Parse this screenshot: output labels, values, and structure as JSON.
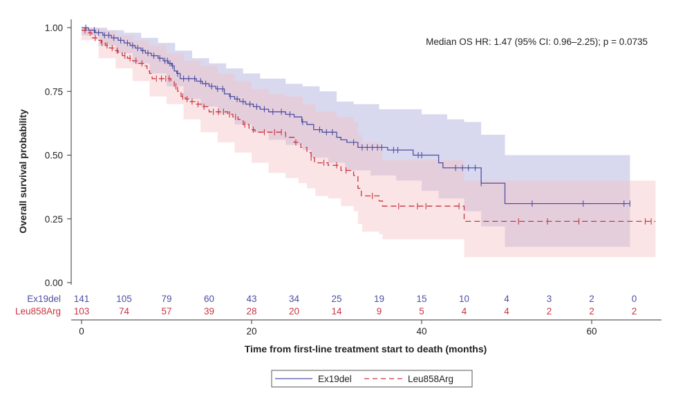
{
  "chart_data": {
    "type": "line",
    "subtype": "kaplan-meier",
    "annotation": "Median OS HR: 1.47 (95% CI: 0.96–2.25); p = 0.0735",
    "xlabel": "Time from first-line treatment start to death (months)",
    "ylabel": "Overall survival probability",
    "xlim": [
      0,
      68
    ],
    "ylim": [
      0,
      1
    ],
    "x_ticks": [
      0,
      20,
      40,
      60
    ],
    "x_tick_labels": [
      "0",
      "20",
      "40",
      "60"
    ],
    "y_ticks": [
      0,
      0.25,
      0.5,
      0.75,
      1
    ],
    "y_tick_labels": [
      "0.00",
      "0.25",
      "0.50",
      "0.75",
      "1.00"
    ],
    "risk_table": {
      "times": [
        0,
        5,
        10,
        15,
        20,
        25,
        30,
        35,
        40,
        45,
        50,
        55,
        60,
        65
      ],
      "rows": [
        {
          "label": "Ex19del",
          "counts": [
            "141",
            "105",
            "79",
            "60",
            "43",
            "34",
            "25",
            "19",
            "15",
            "10",
            "4",
            "3",
            "2",
            "0"
          ]
        },
        {
          "label": "Leu858Arg",
          "counts": [
            "103",
            "74",
            "57",
            "39",
            "28",
            "20",
            "14",
            "9",
            "5",
            "4",
            "4",
            "2",
            "2",
            "2"
          ]
        }
      ]
    },
    "legend": {
      "position": "bottom-center",
      "entries": [
        "Ex19del",
        "Leu858Arg"
      ]
    },
    "series": [
      {
        "name": "Ex19del",
        "color": "#4a4fa3",
        "band_color": "#a9a9d9",
        "line_style": "solid",
        "steps": [
          [
            0,
            1.0
          ],
          [
            0.8,
            0.99
          ],
          [
            1.6,
            0.98
          ],
          [
            2.5,
            0.97
          ],
          [
            3.5,
            0.96
          ],
          [
            4.3,
            0.95
          ],
          [
            5,
            0.94
          ],
          [
            5.7,
            0.93
          ],
          [
            6.3,
            0.92
          ],
          [
            7,
            0.91
          ],
          [
            7.5,
            0.9
          ],
          [
            8.2,
            0.89
          ],
          [
            9,
            0.88
          ],
          [
            9.6,
            0.87
          ],
          [
            10.2,
            0.86
          ],
          [
            10.6,
            0.85
          ],
          [
            10.9,
            0.83
          ],
          [
            11.2,
            0.82
          ],
          [
            11.6,
            0.8
          ],
          [
            13.5,
            0.79
          ],
          [
            14.2,
            0.78
          ],
          [
            15,
            0.77
          ],
          [
            15.8,
            0.76
          ],
          [
            16.8,
            0.74
          ],
          [
            17.4,
            0.73
          ],
          [
            18,
            0.72
          ],
          [
            18.6,
            0.71
          ],
          [
            19.3,
            0.7
          ],
          [
            20.2,
            0.69
          ],
          [
            21,
            0.68
          ],
          [
            22,
            0.67
          ],
          [
            24,
            0.66
          ],
          [
            25,
            0.65
          ],
          [
            25.9,
            0.63
          ],
          [
            26.5,
            0.62
          ],
          [
            27.3,
            0.6
          ],
          [
            28.3,
            0.59
          ],
          [
            30,
            0.57
          ],
          [
            30.5,
            0.56
          ],
          [
            31.2,
            0.55
          ],
          [
            32.5,
            0.53
          ],
          [
            36,
            0.52
          ],
          [
            39,
            0.5
          ],
          [
            42,
            0.47
          ],
          [
            42.5,
            0.45
          ],
          [
            47,
            0.39
          ],
          [
            49.8,
            0.31
          ],
          [
            64.5,
            0.31
          ]
        ],
        "lower": [
          [
            0,
            0.97
          ],
          [
            2,
            0.93
          ],
          [
            4,
            0.9
          ],
          [
            6,
            0.86
          ],
          [
            8,
            0.82
          ],
          [
            10,
            0.77
          ],
          [
            12,
            0.72
          ],
          [
            14,
            0.69
          ],
          [
            16,
            0.66
          ],
          [
            18,
            0.62
          ],
          [
            20,
            0.59
          ],
          [
            22,
            0.56
          ],
          [
            24,
            0.54
          ],
          [
            26,
            0.52
          ],
          [
            27,
            0.49
          ],
          [
            29,
            0.47
          ],
          [
            31,
            0.44
          ],
          [
            34,
            0.42
          ],
          [
            37,
            0.4
          ],
          [
            40,
            0.36
          ],
          [
            42,
            0.33
          ],
          [
            45,
            0.28
          ],
          [
            47,
            0.22
          ],
          [
            49.8,
            0.14
          ],
          [
            64.5,
            0.14
          ]
        ],
        "upper": [
          [
            0,
            1.0
          ],
          [
            2,
            1.0
          ],
          [
            3,
            0.99
          ],
          [
            5,
            0.98
          ],
          [
            7,
            0.96
          ],
          [
            9,
            0.94
          ],
          [
            11,
            0.91
          ],
          [
            13,
            0.88
          ],
          [
            15,
            0.86
          ],
          [
            17,
            0.84
          ],
          [
            19,
            0.82
          ],
          [
            21,
            0.8
          ],
          [
            24,
            0.78
          ],
          [
            26,
            0.77
          ],
          [
            28,
            0.75
          ],
          [
            30,
            0.71
          ],
          [
            32,
            0.7
          ],
          [
            35,
            0.68
          ],
          [
            37,
            0.68
          ],
          [
            40,
            0.66
          ],
          [
            43,
            0.64
          ],
          [
            45,
            0.63
          ],
          [
            47,
            0.58
          ],
          [
            49.8,
            0.5
          ],
          [
            64.5,
            0.5
          ]
        ],
        "censor_times": [
          0.5,
          1.5,
          2,
          2.7,
          3.2,
          3.8,
          4.6,
          5.4,
          6,
          6.6,
          7.2,
          7.8,
          8.5,
          9.2,
          9.8,
          10.1,
          10.4,
          10.7,
          11.3,
          12,
          12.6,
          13.3,
          14,
          14.6,
          15.3,
          16,
          16.6,
          17.5,
          18.3,
          19,
          19.8,
          20.6,
          21.5,
          22.5,
          23.5,
          24.5,
          26,
          28,
          28.8,
          29.5,
          32,
          33,
          33.6,
          34.2,
          34.8,
          35.3,
          36.7,
          37.2,
          39.6,
          40,
          44,
          44.8,
          45.5,
          46.3,
          47,
          53,
          59,
          63.8,
          64.5
        ]
      },
      {
        "name": "Leu858Arg",
        "color": "#c8323e",
        "band_color": "#f6c3c6",
        "line_style": "dashed",
        "steps": [
          [
            0,
            0.99
          ],
          [
            0.6,
            0.98
          ],
          [
            1.2,
            0.96
          ],
          [
            1.8,
            0.95
          ],
          [
            2.3,
            0.94
          ],
          [
            2.8,
            0.93
          ],
          [
            3.3,
            0.92
          ],
          [
            3.8,
            0.91
          ],
          [
            4.3,
            0.9
          ],
          [
            4.8,
            0.89
          ],
          [
            5.4,
            0.88
          ],
          [
            6,
            0.87
          ],
          [
            6.7,
            0.86
          ],
          [
            7.3,
            0.85
          ],
          [
            7.7,
            0.83
          ],
          [
            8,
            0.82
          ],
          [
            8.3,
            0.8
          ],
          [
            10.5,
            0.79
          ],
          [
            10.9,
            0.77
          ],
          [
            11.3,
            0.75
          ],
          [
            11.7,
            0.73
          ],
          [
            12.2,
            0.72
          ],
          [
            12.8,
            0.71
          ],
          [
            13.5,
            0.7
          ],
          [
            14.2,
            0.69
          ],
          [
            15,
            0.67
          ],
          [
            17.2,
            0.66
          ],
          [
            17.8,
            0.65
          ],
          [
            18.4,
            0.64
          ],
          [
            19,
            0.62
          ],
          [
            19.7,
            0.6
          ],
          [
            20.4,
            0.59
          ],
          [
            24,
            0.57
          ],
          [
            25,
            0.55
          ],
          [
            25.8,
            0.53
          ],
          [
            26.5,
            0.51
          ],
          [
            27,
            0.49
          ],
          [
            27.4,
            0.47
          ],
          [
            29,
            0.46
          ],
          [
            30.5,
            0.44
          ],
          [
            32,
            0.42
          ],
          [
            32.5,
            0.37
          ],
          [
            32.9,
            0.34
          ],
          [
            35,
            0.32
          ],
          [
            35.4,
            0.3
          ],
          [
            45,
            0.24
          ],
          [
            67.5,
            0.24
          ]
        ],
        "lower": [
          [
            0,
            0.95
          ],
          [
            2,
            0.88
          ],
          [
            4,
            0.84
          ],
          [
            6,
            0.79
          ],
          [
            8,
            0.73
          ],
          [
            10,
            0.7
          ],
          [
            12,
            0.64
          ],
          [
            14,
            0.59
          ],
          [
            16,
            0.55
          ],
          [
            18,
            0.51
          ],
          [
            20,
            0.47
          ],
          [
            22,
            0.43
          ],
          [
            24,
            0.41
          ],
          [
            25.5,
            0.39
          ],
          [
            26.5,
            0.37
          ],
          [
            27.5,
            0.34
          ],
          [
            29,
            0.33
          ],
          [
            30.5,
            0.3
          ],
          [
            32,
            0.28
          ],
          [
            32.5,
            0.23
          ],
          [
            33,
            0.2
          ],
          [
            35,
            0.19
          ],
          [
            35.4,
            0.17
          ],
          [
            45,
            0.1
          ],
          [
            67.5,
            0.1
          ]
        ],
        "upper": [
          [
            0,
            1.0
          ],
          [
            1,
            1.0
          ],
          [
            2,
            0.99
          ],
          [
            4,
            0.97
          ],
          [
            6,
            0.95
          ],
          [
            8,
            0.93
          ],
          [
            10,
            0.9
          ],
          [
            12,
            0.87
          ],
          [
            14,
            0.85
          ],
          [
            16,
            0.82
          ],
          [
            18,
            0.79
          ],
          [
            20,
            0.76
          ],
          [
            22,
            0.74
          ],
          [
            24,
            0.73
          ],
          [
            26,
            0.7
          ],
          [
            27.5,
            0.67
          ],
          [
            30,
            0.65
          ],
          [
            32,
            0.63
          ],
          [
            32.5,
            0.58
          ],
          [
            33,
            0.55
          ],
          [
            35,
            0.54
          ],
          [
            35.4,
            0.48
          ],
          [
            45,
            0.4
          ],
          [
            67.5,
            0.4
          ]
        ],
        "censor_times": [
          0.4,
          1,
          1.6,
          2.4,
          3,
          3.6,
          4.2,
          5.1,
          5.7,
          6.4,
          7.1,
          8.8,
          9.4,
          9.9,
          10.3,
          11.1,
          11.9,
          12.4,
          13,
          13.7,
          14.4,
          15.5,
          16.1,
          16.7,
          17.4,
          18.1,
          19.2,
          20.2,
          21.5,
          22.7,
          23.5,
          25.2,
          27,
          28.5,
          30,
          31.1,
          34.2,
          37.3,
          39.5,
          40.5,
          44.4,
          51.4,
          54.8,
          58.5,
          66.3,
          67
        ]
      }
    ]
  }
}
